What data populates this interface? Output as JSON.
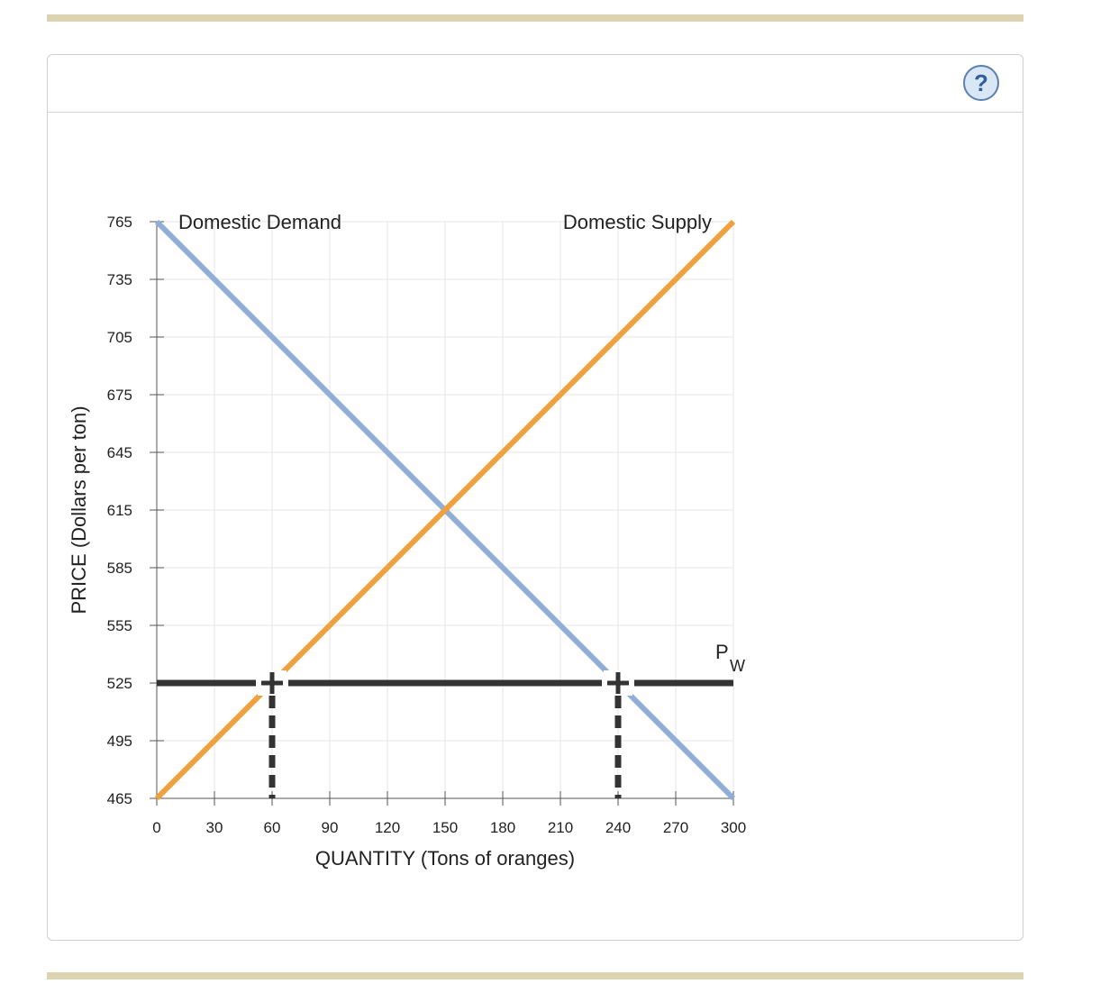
{
  "help_button": {
    "label": "?"
  },
  "colors": {
    "demand": "#91aed6",
    "supply": "#f0a13d",
    "world_price": "#333333",
    "grid": "#e6e6e6",
    "frame_rule": "#dcd3b0"
  },
  "chart_data": {
    "type": "line",
    "xlabel": "QUANTITY (Tons of oranges)",
    "ylabel": "PRICE (Dollars per ton)",
    "xlim": [
      0,
      300
    ],
    "ylim": [
      465,
      765
    ],
    "x_ticks": [
      0,
      30,
      60,
      90,
      120,
      150,
      180,
      210,
      240,
      270,
      300
    ],
    "y_ticks": [
      465,
      495,
      525,
      555,
      585,
      615,
      645,
      675,
      705,
      735,
      765
    ],
    "grid": true,
    "series": [
      {
        "name": "Domestic Demand",
        "points": [
          [
            0,
            765
          ],
          [
            300,
            465
          ]
        ]
      },
      {
        "name": "Domestic Supply",
        "points": [
          [
            0,
            465
          ],
          [
            300,
            765
          ]
        ]
      }
    ],
    "world_price": {
      "label": "P",
      "subscript": "W",
      "value": 525
    },
    "markers": [
      {
        "x": 60,
        "y": 525
      },
      {
        "x": 240,
        "y": 525
      }
    ]
  }
}
